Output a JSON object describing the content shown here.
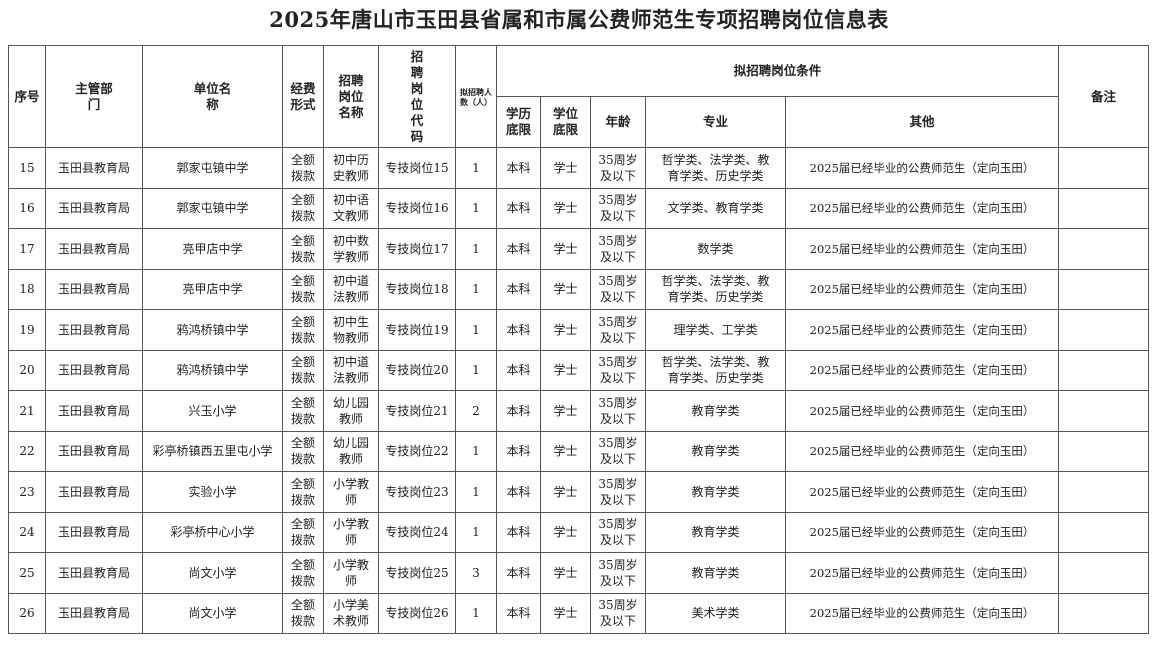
{
  "title": "2025年唐山市玉田县省属和市属公费师范生专项招聘岗位信息表",
  "headers": {
    "seq": "序号",
    "dept": "主管部门",
    "unit": "单位名称",
    "funding": "经费形式",
    "post_name": "招聘岗位名称",
    "post_code": "招聘岗位代码",
    "count": "拟招聘人数（人）",
    "conditions": "拟招聘岗位条件",
    "edu": "学历底限",
    "degree": "学位底限",
    "age": "年龄",
    "major": "专业",
    "other": "其他",
    "remark": "备注"
  },
  "rows": [
    {
      "seq": "15",
      "dept": "玉田县教育局",
      "unit": "郭家屯镇中学",
      "funding": "全额拨款",
      "post_name": "初中历史教师",
      "post_code": "专技岗位15",
      "count": "1",
      "edu": "本科",
      "degree": "学士",
      "age": "35周岁及以下",
      "major": "哲学类、法学类、教育学类、历史学类",
      "other": "2025届已经毕业的公费师范生（定向玉田）",
      "remark": ""
    },
    {
      "seq": "16",
      "dept": "玉田县教育局",
      "unit": "郭家屯镇中学",
      "funding": "全额拨款",
      "post_name": "初中语文教师",
      "post_code": "专技岗位16",
      "count": "1",
      "edu": "本科",
      "degree": "学士",
      "age": "35周岁及以下",
      "major": "文学类、教育学类",
      "other": "2025届已经毕业的公费师范生（定向玉田）",
      "remark": ""
    },
    {
      "seq": "17",
      "dept": "玉田县教育局",
      "unit": "亮甲店中学",
      "funding": "全额拨款",
      "post_name": "初中数学教师",
      "post_code": "专技岗位17",
      "count": "1",
      "edu": "本科",
      "degree": "学士",
      "age": "35周岁及以下",
      "major": "数学类",
      "other": "2025届已经毕业的公费师范生（定向玉田）",
      "remark": ""
    },
    {
      "seq": "18",
      "dept": "玉田县教育局",
      "unit": "亮甲店中学",
      "funding": "全额拨款",
      "post_name": "初中道法教师",
      "post_code": "专技岗位18",
      "count": "1",
      "edu": "本科",
      "degree": "学士",
      "age": "35周岁及以下",
      "major": "哲学类、法学类、教育学类、历史学类",
      "other": "2025届已经毕业的公费师范生（定向玉田）",
      "remark": ""
    },
    {
      "seq": "19",
      "dept": "玉田县教育局",
      "unit": "鸦鸿桥镇中学",
      "funding": "全额拨款",
      "post_name": "初中生物教师",
      "post_code": "专技岗位19",
      "count": "1",
      "edu": "本科",
      "degree": "学士",
      "age": "35周岁及以下",
      "major": "理学类、工学类",
      "other": "2025届已经毕业的公费师范生（定向玉田）",
      "remark": ""
    },
    {
      "seq": "20",
      "dept": "玉田县教育局",
      "unit": "鸦鸿桥镇中学",
      "funding": "全额拨款",
      "post_name": "初中道法教师",
      "post_code": "专技岗位20",
      "count": "1",
      "edu": "本科",
      "degree": "学士",
      "age": "35周岁及以下",
      "major": "哲学类、法学类、教育学类、历史学类",
      "other": "2025届已经毕业的公费师范生（定向玉田）",
      "remark": ""
    },
    {
      "seq": "21",
      "dept": "玉田县教育局",
      "unit": "兴玉小学",
      "funding": "全额拨款",
      "post_name": "幼儿园教师",
      "post_code": "专技岗位21",
      "count": "2",
      "edu": "本科",
      "degree": "学士",
      "age": "35周岁及以下",
      "major": "教育学类",
      "other": "2025届已经毕业的公费师范生（定向玉田）",
      "remark": ""
    },
    {
      "seq": "22",
      "dept": "玉田县教育局",
      "unit": "彩亭桥镇西五里屯小学",
      "funding": "全额拨款",
      "post_name": "幼儿园教师",
      "post_code": "专技岗位22",
      "count": "1",
      "edu": "本科",
      "degree": "学士",
      "age": "35周岁及以下",
      "major": "教育学类",
      "other": "2025届已经毕业的公费师范生（定向玉田）",
      "remark": ""
    },
    {
      "seq": "23",
      "dept": "玉田县教育局",
      "unit": "实验小学",
      "funding": "全额拨款",
      "post_name": "小学教师",
      "post_code": "专技岗位23",
      "count": "1",
      "edu": "本科",
      "degree": "学士",
      "age": "35周岁及以下",
      "major": "教育学类",
      "other": "2025届已经毕业的公费师范生（定向玉田）",
      "remark": ""
    },
    {
      "seq": "24",
      "dept": "玉田县教育局",
      "unit": "彩亭桥中心小学",
      "funding": "全额拨款",
      "post_name": "小学教师",
      "post_code": "专技岗位24",
      "count": "1",
      "edu": "本科",
      "degree": "学士",
      "age": "35周岁及以下",
      "major": "教育学类",
      "other": "2025届已经毕业的公费师范生（定向玉田）",
      "remark": ""
    },
    {
      "seq": "25",
      "dept": "玉田县教育局",
      "unit": "尚文小学",
      "funding": "全额拨款",
      "post_name": "小学教师",
      "post_code": "专技岗位25",
      "count": "3",
      "edu": "本科",
      "degree": "学士",
      "age": "35周岁及以下",
      "major": "教育学类",
      "other": "2025届已经毕业的公费师范生（定向玉田）",
      "remark": ""
    },
    {
      "seq": "26",
      "dept": "玉田县教育局",
      "unit": "尚文小学",
      "funding": "全额拨款",
      "post_name": "小学美术教师",
      "post_code": "专技岗位26",
      "count": "1",
      "edu": "本科",
      "degree": "学士",
      "age": "35周岁及以下",
      "major": "美术学类",
      "other": "2025届已经毕业的公费师范生（定向玉田）",
      "remark": ""
    }
  ]
}
